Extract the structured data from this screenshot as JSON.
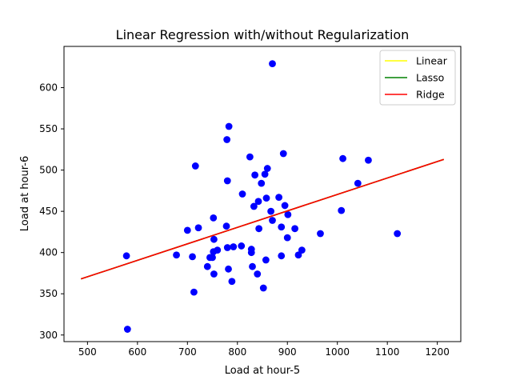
{
  "chart_data": {
    "type": "scatter",
    "title": "Linear Regression with/without Regularization",
    "xlabel": "Load at hour-5",
    "ylabel": "Load at hour-6",
    "xlim": [
      453,
      1247
    ],
    "ylim": [
      292,
      650
    ],
    "xticks": [
      500,
      600,
      700,
      800,
      900,
      1000,
      1100,
      1200
    ],
    "yticks": [
      300,
      350,
      400,
      450,
      500,
      550,
      600
    ],
    "grid": false,
    "legend_position": "top-right",
    "series": [
      {
        "name": "Data",
        "color": "#0000ff",
        "marker": "circle",
        "legend": false,
        "points": [
          [
            580,
            307
          ],
          [
            578,
            396
          ],
          [
            678,
            397
          ],
          [
            700,
            427
          ],
          [
            710,
            395
          ],
          [
            713,
            352
          ],
          [
            716,
            505
          ],
          [
            722,
            430
          ],
          [
            740,
            383
          ],
          [
            745,
            394
          ],
          [
            750,
            394
          ],
          [
            752,
            442
          ],
          [
            752,
            401
          ],
          [
            753,
            374
          ],
          [
            753,
            416
          ],
          [
            760,
            403
          ],
          [
            778,
            432
          ],
          [
            779,
            537
          ],
          [
            780,
            487
          ],
          [
            780,
            406
          ],
          [
            782,
            380
          ],
          [
            783,
            553
          ],
          [
            789,
            365
          ],
          [
            792,
            407
          ],
          [
            810,
            471
          ],
          [
            808,
            408
          ],
          [
            825,
            516
          ],
          [
            828,
            404
          ],
          [
            828,
            400
          ],
          [
            830,
            383
          ],
          [
            833,
            456
          ],
          [
            835,
            494
          ],
          [
            840,
            374
          ],
          [
            842,
            462
          ],
          [
            843,
            429
          ],
          [
            848,
            484
          ],
          [
            852,
            357
          ],
          [
            855,
            495
          ],
          [
            857,
            391
          ],
          [
            858,
            466
          ],
          [
            860,
            502
          ],
          [
            867,
            450
          ],
          [
            870,
            629
          ],
          [
            870,
            439
          ],
          [
            883,
            467
          ],
          [
            888,
            431
          ],
          [
            888,
            396
          ],
          [
            892,
            520
          ],
          [
            895,
            457
          ],
          [
            900,
            418
          ],
          [
            901,
            446
          ],
          [
            915,
            429
          ],
          [
            922,
            397
          ],
          [
            929,
            403
          ],
          [
            966,
            423
          ],
          [
            1008,
            451
          ],
          [
            1011,
            514
          ],
          [
            1041,
            484
          ],
          [
            1062,
            512
          ],
          [
            1120,
            423
          ]
        ]
      }
    ],
    "lines": [
      {
        "name": "Linear",
        "color": "#ffff00",
        "points": [
          [
            487,
            368
          ],
          [
            1213,
            513
          ]
        ]
      },
      {
        "name": "Lasso",
        "color": "#008000",
        "points": [
          [
            487,
            368
          ],
          [
            1213,
            513
          ]
        ]
      },
      {
        "name": "Ridge",
        "color": "#ff0000",
        "points": [
          [
            487,
            368
          ],
          [
            1213,
            513
          ]
        ]
      }
    ]
  }
}
